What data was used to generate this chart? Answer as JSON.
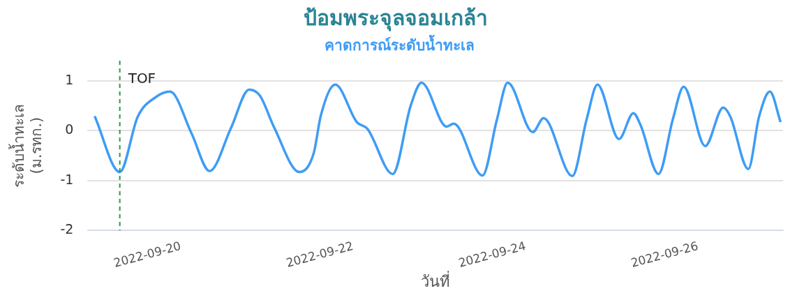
{
  "chart_data": {
    "type": "line",
    "title": "ป้อมพระจุลจอมเกล้า",
    "xlabel": "วันที่",
    "ylabel": "ระดับน้ำทะเล (ม.รทก.)",
    "x": [
      "2022-09-19T00:00",
      "2022-09-19T07:00",
      "2022-09-19T12:00",
      "2022-09-19T17:00",
      "2022-09-19T21:00",
      "2022-09-20T03:00",
      "2022-09-20T08:00",
      "2022-09-20T14:00",
      "2022-09-20T19:00",
      "2022-09-20T22:00",
      "2022-09-21T02:00",
      "2022-09-21T09:00",
      "2022-09-21T13:00",
      "2022-09-21T15:00",
      "2022-09-21T19:00",
      "2022-09-22T01:00",
      "2022-09-22T04:00",
      "2022-09-22T11:00",
      "2022-09-22T16:00",
      "2022-09-22T19:00",
      "2022-09-23T02:00",
      "2022-09-23T04:00",
      "2022-09-23T12:00",
      "2022-09-23T16:00",
      "2022-09-23T19:00",
      "2022-09-24T02:00",
      "2022-09-24T05:00",
      "2022-09-24T13:00",
      "2022-09-24T17:00",
      "2022-09-24T20:00",
      "2022-09-25T02:00",
      "2022-09-25T06:00",
      "2022-09-25T08:00",
      "2022-09-25T13:00",
      "2022-09-25T17:00",
      "2022-09-25T20:00",
      "2022-09-26T02:00",
      "2022-09-26T07:00",
      "2022-09-26T09:00",
      "2022-09-26T14:00",
      "2022-09-26T17:00",
      "2022-09-26T20:00",
      "2022-09-26T23:00"
    ],
    "series": [
      {
        "name": "คาดการณ์ระดับน้ำทะเล",
        "color": "#3f9cf5",
        "values": [
          0.29,
          -0.83,
          0.28,
          0.67,
          0.78,
          -0.06,
          -0.81,
          0.06,
          0.82,
          0.7,
          0.06,
          -0.83,
          -0.45,
          0.31,
          0.92,
          0.17,
          0.03,
          -0.87,
          0.5,
          0.96,
          0.08,
          0.14,
          -0.9,
          0.22,
          0.96,
          -0.03,
          0.25,
          -0.91,
          0.23,
          0.92,
          -0.17,
          0.35,
          0.11,
          -0.87,
          0.23,
          0.88,
          -0.31,
          0.46,
          0.28,
          -0.77,
          0.28,
          0.78,
          0.17
        ]
      }
    ],
    "xlim": [
      "2022-09-18T22:00",
      "2022-09-26T23:40"
    ],
    "xticks": [
      "2022-09-20",
      "2022-09-22",
      "2022-09-24",
      "2022-09-26"
    ],
    "ylim": [
      -2,
      1.4
    ],
    "yticks": [
      -2,
      -1,
      0,
      1
    ],
    "ref_lines": [
      {
        "axis": "x",
        "value": "2022-09-19T07:00",
        "label": "TOF",
        "color": "#2e9a3a",
        "line_style": "dashed"
      }
    ],
    "grid": "y",
    "legend": "top",
    "marker": "none",
    "line_style": "solid"
  }
}
